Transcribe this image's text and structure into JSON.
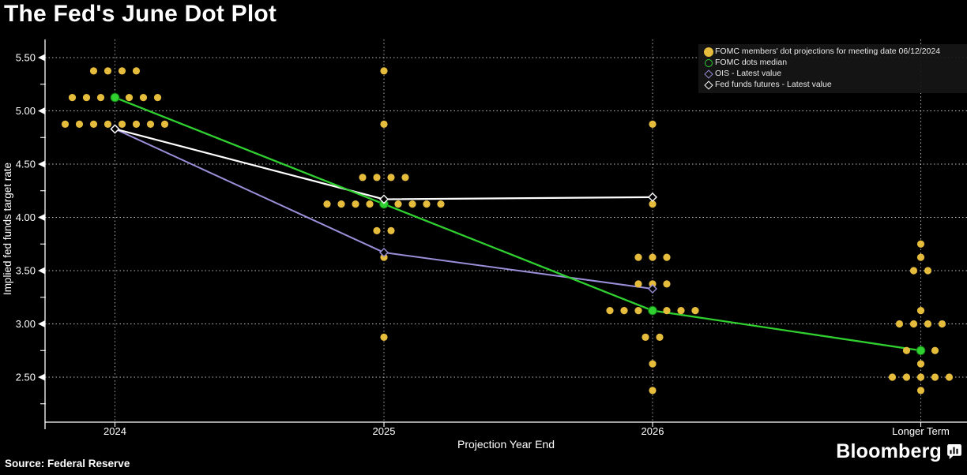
{
  "page": {
    "title": "The Fed's June Dot Plot",
    "source": "Source: Federal Reserve",
    "brand": "Bloomberg"
  },
  "colors": {
    "background": "#000000",
    "text": "#ffffff",
    "dot_yellow": "#e6bc3c",
    "median_green": "#2fd02f",
    "ois_purple": "#9a8fd8",
    "futures_white": "#ffffff",
    "grid": "#ffffff",
    "legend_bg": "#161616"
  },
  "legend": {
    "items": [
      {
        "label": "FOMC members' dot projections for meeting date 06/12/2024",
        "marker": "yellow-dot"
      },
      {
        "label": "FOMC dots median",
        "marker": "green-open-circle"
      },
      {
        "label": "OIS - Latest value",
        "marker": "purple-open-diamond"
      },
      {
        "label": "Fed funds futures - Latest value",
        "marker": "white-open-diamond"
      }
    ]
  },
  "chart_data": {
    "type": "scatter",
    "title": "The Fed's June Dot Plot",
    "xlabel": "Projection Year End",
    "ylabel": "Implied fed funds target rate",
    "categories": [
      "2024",
      "2025",
      "2026",
      "Longer Term"
    ],
    "y_axis": {
      "major_ticks": [
        5.5,
        5.0,
        4.5,
        4.0,
        3.5,
        3.0,
        2.5
      ],
      "minor_ticks": [
        5.25,
        4.75,
        4.25,
        3.75,
        3.25,
        2.75,
        2.25
      ],
      "ylim": [
        2.1,
        5.65
      ],
      "grid": "dotted"
    },
    "dot_distributions": {
      "2024": [
        [
          5.375,
          4
        ],
        [
          5.125,
          7
        ],
        [
          4.875,
          8
        ]
      ],
      "2025": [
        [
          5.375,
          1
        ],
        [
          4.875,
          1
        ],
        [
          4.375,
          4
        ],
        [
          4.125,
          9
        ],
        [
          3.875,
          2
        ],
        [
          3.625,
          1
        ],
        [
          2.875,
          1
        ]
      ],
      "2026": [
        [
          4.875,
          1
        ],
        [
          4.125,
          1
        ],
        [
          3.625,
          3
        ],
        [
          3.375,
          3
        ],
        [
          3.125,
          7
        ],
        [
          2.875,
          2
        ],
        [
          2.625,
          1
        ],
        [
          2.375,
          1
        ]
      ],
      "Longer Term": [
        [
          3.75,
          1
        ],
        [
          3.625,
          1
        ],
        [
          3.5,
          2
        ],
        [
          3.125,
          1
        ],
        [
          3.0,
          4
        ],
        [
          2.75,
          3
        ],
        [
          2.625,
          1
        ],
        [
          2.5,
          5
        ],
        [
          2.375,
          1
        ]
      ]
    },
    "series": [
      {
        "name": "FOMC dots median",
        "color_key": "median_green",
        "categories": [
          "2024",
          "2025",
          "2026",
          "Longer Term"
        ],
        "values": [
          5.125,
          4.125,
          3.125,
          2.75
        ],
        "marker": "filled-circle"
      },
      {
        "name": "OIS - Latest value",
        "color_key": "ois_purple",
        "categories": [
          "2024",
          "2025",
          "2026"
        ],
        "values": [
          4.83,
          3.67,
          3.33
        ],
        "marker": "open-diamond"
      },
      {
        "name": "Fed funds futures - Latest value",
        "color_key": "futures_white",
        "categories": [
          "2024",
          "2025",
          "2026"
        ],
        "values": [
          4.83,
          4.17,
          4.19
        ],
        "marker": "open-diamond"
      }
    ]
  }
}
